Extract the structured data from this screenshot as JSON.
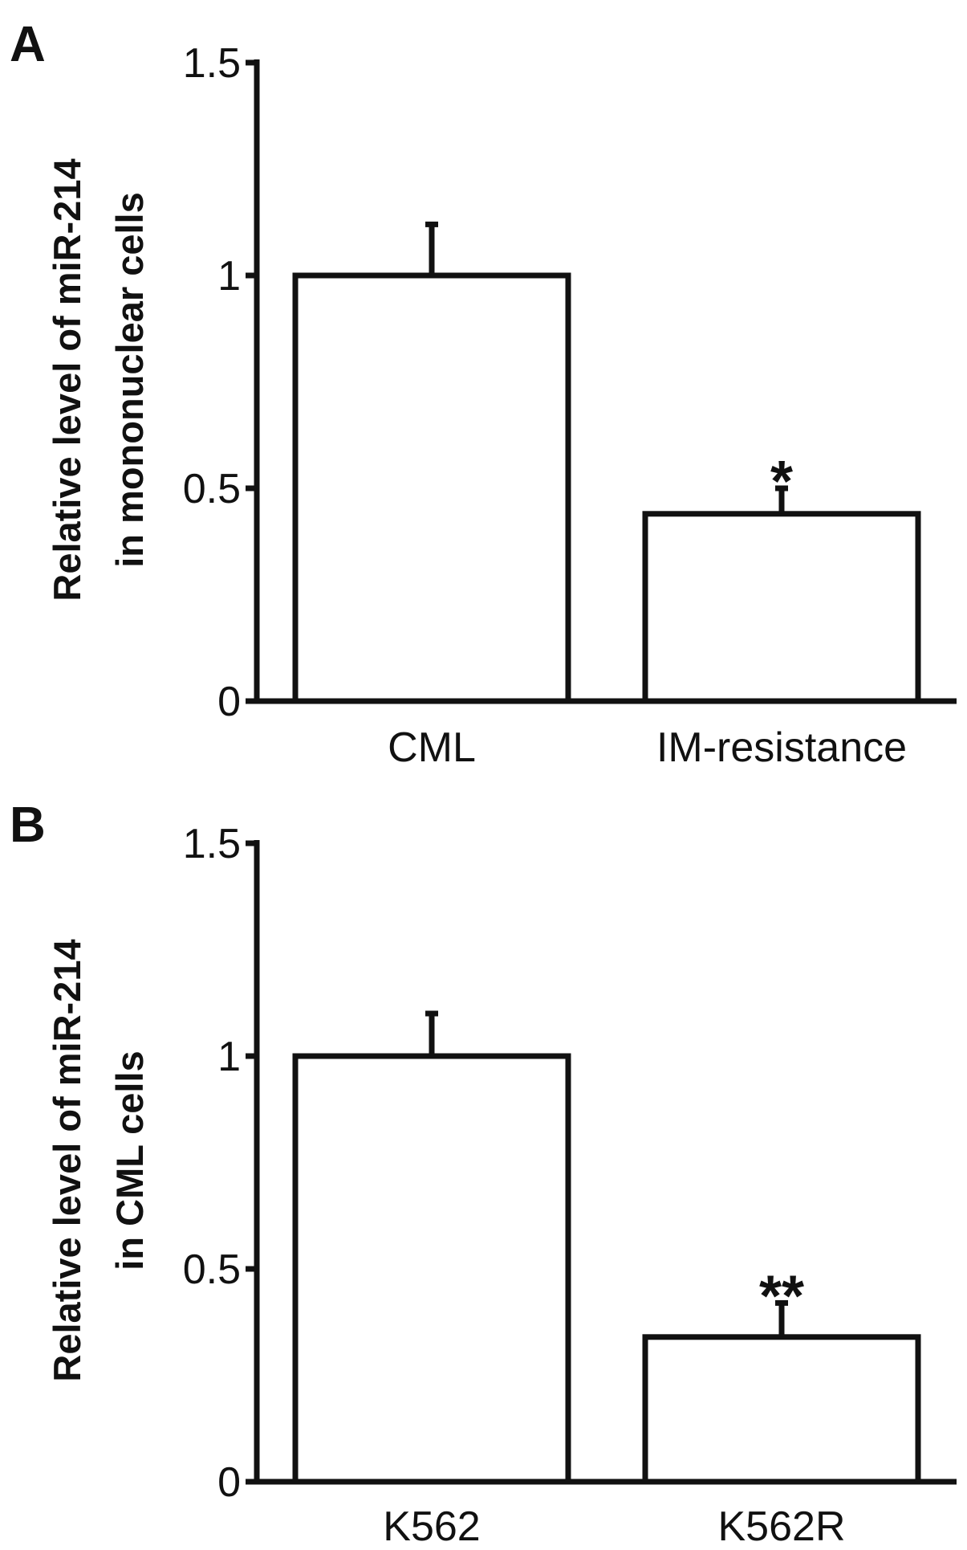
{
  "chart_data": [
    {
      "type": "bar",
      "panel": "A",
      "ylabel_lines": [
        "Relative level of miR-214",
        "in mononuclear cells"
      ],
      "categories": [
        "CML",
        "IM-resistance"
      ],
      "values": [
        1.0,
        0.44
      ],
      "errors": [
        0.12,
        0.06
      ],
      "significance": [
        "",
        "*"
      ],
      "ylim": [
        0,
        1.5
      ],
      "yticks": [
        0,
        0.5,
        1,
        1.5
      ],
      "ytick_labels": [
        "0",
        "0.5",
        "1",
        "1.5"
      ],
      "grid": false,
      "bar_fill": "#ffffff",
      "stroke_color": "#111111"
    },
    {
      "type": "bar",
      "panel": "B",
      "ylabel_lines": [
        "Relative level of miR-214",
        "in CML cells"
      ],
      "categories": [
        "K562",
        "K562R"
      ],
      "values": [
        1.0,
        0.34
      ],
      "errors": [
        0.1,
        0.08
      ],
      "significance": [
        "",
        "**"
      ],
      "ylim": [
        0,
        1.5
      ],
      "yticks": [
        0,
        0.5,
        1,
        1.5
      ],
      "ytick_labels": [
        "0",
        "0.5",
        "1",
        "1.5"
      ],
      "grid": false,
      "bar_fill": "#ffffff",
      "stroke_color": "#111111"
    }
  ]
}
